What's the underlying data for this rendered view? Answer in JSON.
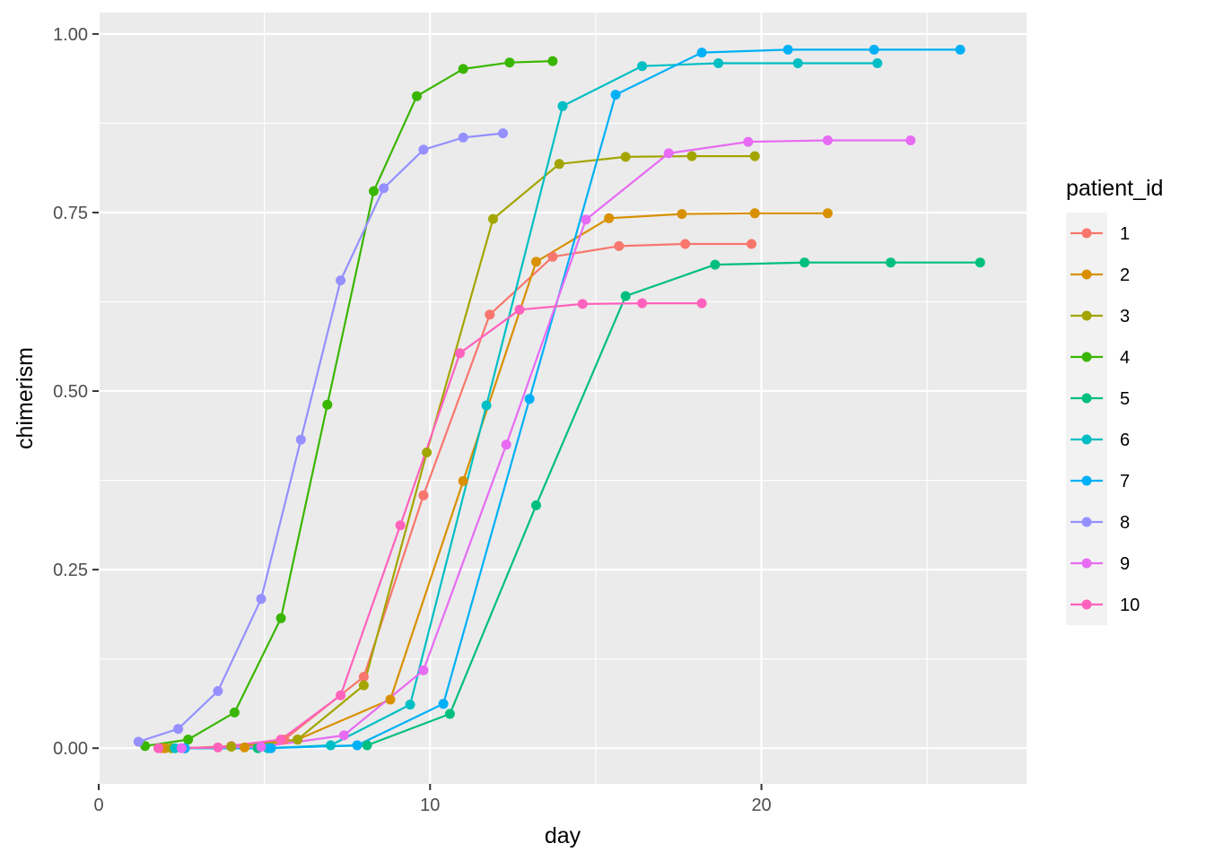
{
  "chart_data": {
    "type": "line",
    "title": "",
    "xlabel": "day",
    "ylabel": "chimerism",
    "xlim": [
      0,
      28
    ],
    "ylim": [
      -0.05,
      1.03
    ],
    "x_ticks": [
      0,
      10,
      20
    ],
    "y_ticks": [
      0.0,
      0.25,
      0.5,
      0.75,
      1.0
    ],
    "x_tick_labels": [
      "0",
      "10",
      "20"
    ],
    "y_tick_labels": [
      "0.00",
      "0.25",
      "0.50",
      "0.75",
      "1.00"
    ],
    "grid": true,
    "legend": {
      "title": "patient_id",
      "position": "right"
    },
    "series": [
      {
        "name": "1",
        "color": "#F8766D",
        "points": [
          [
            1.9,
            0.0
          ],
          [
            2.6,
            0.0
          ],
          [
            4.0,
            0.003
          ],
          [
            5.6,
            0.012
          ],
          [
            8.0,
            0.1
          ],
          [
            9.8,
            0.354
          ],
          [
            11.8,
            0.607
          ],
          [
            13.7,
            0.688
          ],
          [
            15.7,
            0.703
          ],
          [
            17.7,
            0.706
          ],
          [
            19.7,
            0.706
          ]
        ]
      },
      {
        "name": "2",
        "color": "#D89000",
        "points": [
          [
            2.0,
            0.0
          ],
          [
            4.4,
            0.001
          ],
          [
            6.0,
            0.012
          ],
          [
            8.8,
            0.068
          ],
          [
            11.0,
            0.374
          ],
          [
            13.2,
            0.681
          ],
          [
            15.4,
            0.742
          ],
          [
            17.6,
            0.748
          ],
          [
            19.8,
            0.749
          ],
          [
            22.0,
            0.749
          ]
        ]
      },
      {
        "name": "3",
        "color": "#A3A500",
        "points": [
          [
            2.2,
            0.0
          ],
          [
            4.0,
            0.002
          ],
          [
            6.0,
            0.012
          ],
          [
            8.0,
            0.088
          ],
          [
            9.9,
            0.414
          ],
          [
            11.9,
            0.741
          ],
          [
            13.9,
            0.818
          ],
          [
            15.9,
            0.828
          ],
          [
            17.9,
            0.829
          ],
          [
            19.8,
            0.829
          ]
        ]
      },
      {
        "name": "4",
        "color": "#39B600",
        "points": [
          [
            1.4,
            0.003
          ],
          [
            2.7,
            0.012
          ],
          [
            4.1,
            0.05
          ],
          [
            5.5,
            0.182
          ],
          [
            6.9,
            0.481
          ],
          [
            8.3,
            0.78
          ],
          [
            9.6,
            0.913
          ],
          [
            11.0,
            0.951
          ],
          [
            12.4,
            0.96
          ],
          [
            13.7,
            0.962
          ]
        ]
      },
      {
        "name": "5",
        "color": "#00BF7D",
        "points": [
          [
            2.6,
            0.0
          ],
          [
            4.8,
            0.0
          ],
          [
            8.1,
            0.004
          ],
          [
            10.6,
            0.048
          ],
          [
            13.2,
            0.34
          ],
          [
            15.9,
            0.633
          ],
          [
            18.6,
            0.677
          ],
          [
            21.3,
            0.68
          ],
          [
            23.9,
            0.68
          ],
          [
            26.6,
            0.68
          ]
        ]
      },
      {
        "name": "6",
        "color": "#00BFC4",
        "points": [
          [
            2.3,
            0.0
          ],
          [
            5.1,
            0.0
          ],
          [
            7.0,
            0.004
          ],
          [
            9.4,
            0.061
          ],
          [
            11.7,
            0.48
          ],
          [
            14.0,
            0.899
          ],
          [
            16.4,
            0.955
          ],
          [
            18.7,
            0.959
          ],
          [
            21.1,
            0.959
          ],
          [
            23.5,
            0.959
          ]
        ]
      },
      {
        "name": "7",
        "color": "#00B0F6",
        "points": [
          [
            2.6,
            0.0
          ],
          [
            5.2,
            0.0
          ],
          [
            7.8,
            0.004
          ],
          [
            10.4,
            0.062
          ],
          [
            13.0,
            0.489
          ],
          [
            15.6,
            0.915
          ],
          [
            18.2,
            0.974
          ],
          [
            20.8,
            0.978
          ],
          [
            23.4,
            0.978
          ],
          [
            26.0,
            0.978
          ]
        ]
      },
      {
        "name": "8",
        "color": "#9590FF",
        "points": [
          [
            1.2,
            0.009
          ],
          [
            2.4,
            0.027
          ],
          [
            3.6,
            0.08
          ],
          [
            4.9,
            0.209
          ],
          [
            6.1,
            0.432
          ],
          [
            7.3,
            0.655
          ],
          [
            8.6,
            0.784
          ],
          [
            9.8,
            0.838
          ],
          [
            11.0,
            0.855
          ],
          [
            12.2,
            0.861
          ]
        ]
      },
      {
        "name": "9",
        "color": "#E76BF3",
        "points": [
          [
            2.5,
            0.0
          ],
          [
            4.9,
            0.002
          ],
          [
            7.4,
            0.018
          ],
          [
            9.8,
            0.109
          ],
          [
            12.3,
            0.425
          ],
          [
            14.7,
            0.74
          ],
          [
            17.2,
            0.833
          ],
          [
            19.6,
            0.849
          ],
          [
            22.0,
            0.851
          ],
          [
            24.5,
            0.851
          ]
        ]
      },
      {
        "name": "10",
        "color": "#FF62BC",
        "points": [
          [
            1.8,
            0.0
          ],
          [
            3.6,
            0.001
          ],
          [
            5.5,
            0.012
          ],
          [
            7.3,
            0.074
          ],
          [
            9.1,
            0.312
          ],
          [
            10.9,
            0.553
          ],
          [
            12.7,
            0.614
          ],
          [
            14.6,
            0.622
          ],
          [
            16.4,
            0.623
          ],
          [
            18.2,
            0.623
          ]
        ]
      }
    ]
  }
}
